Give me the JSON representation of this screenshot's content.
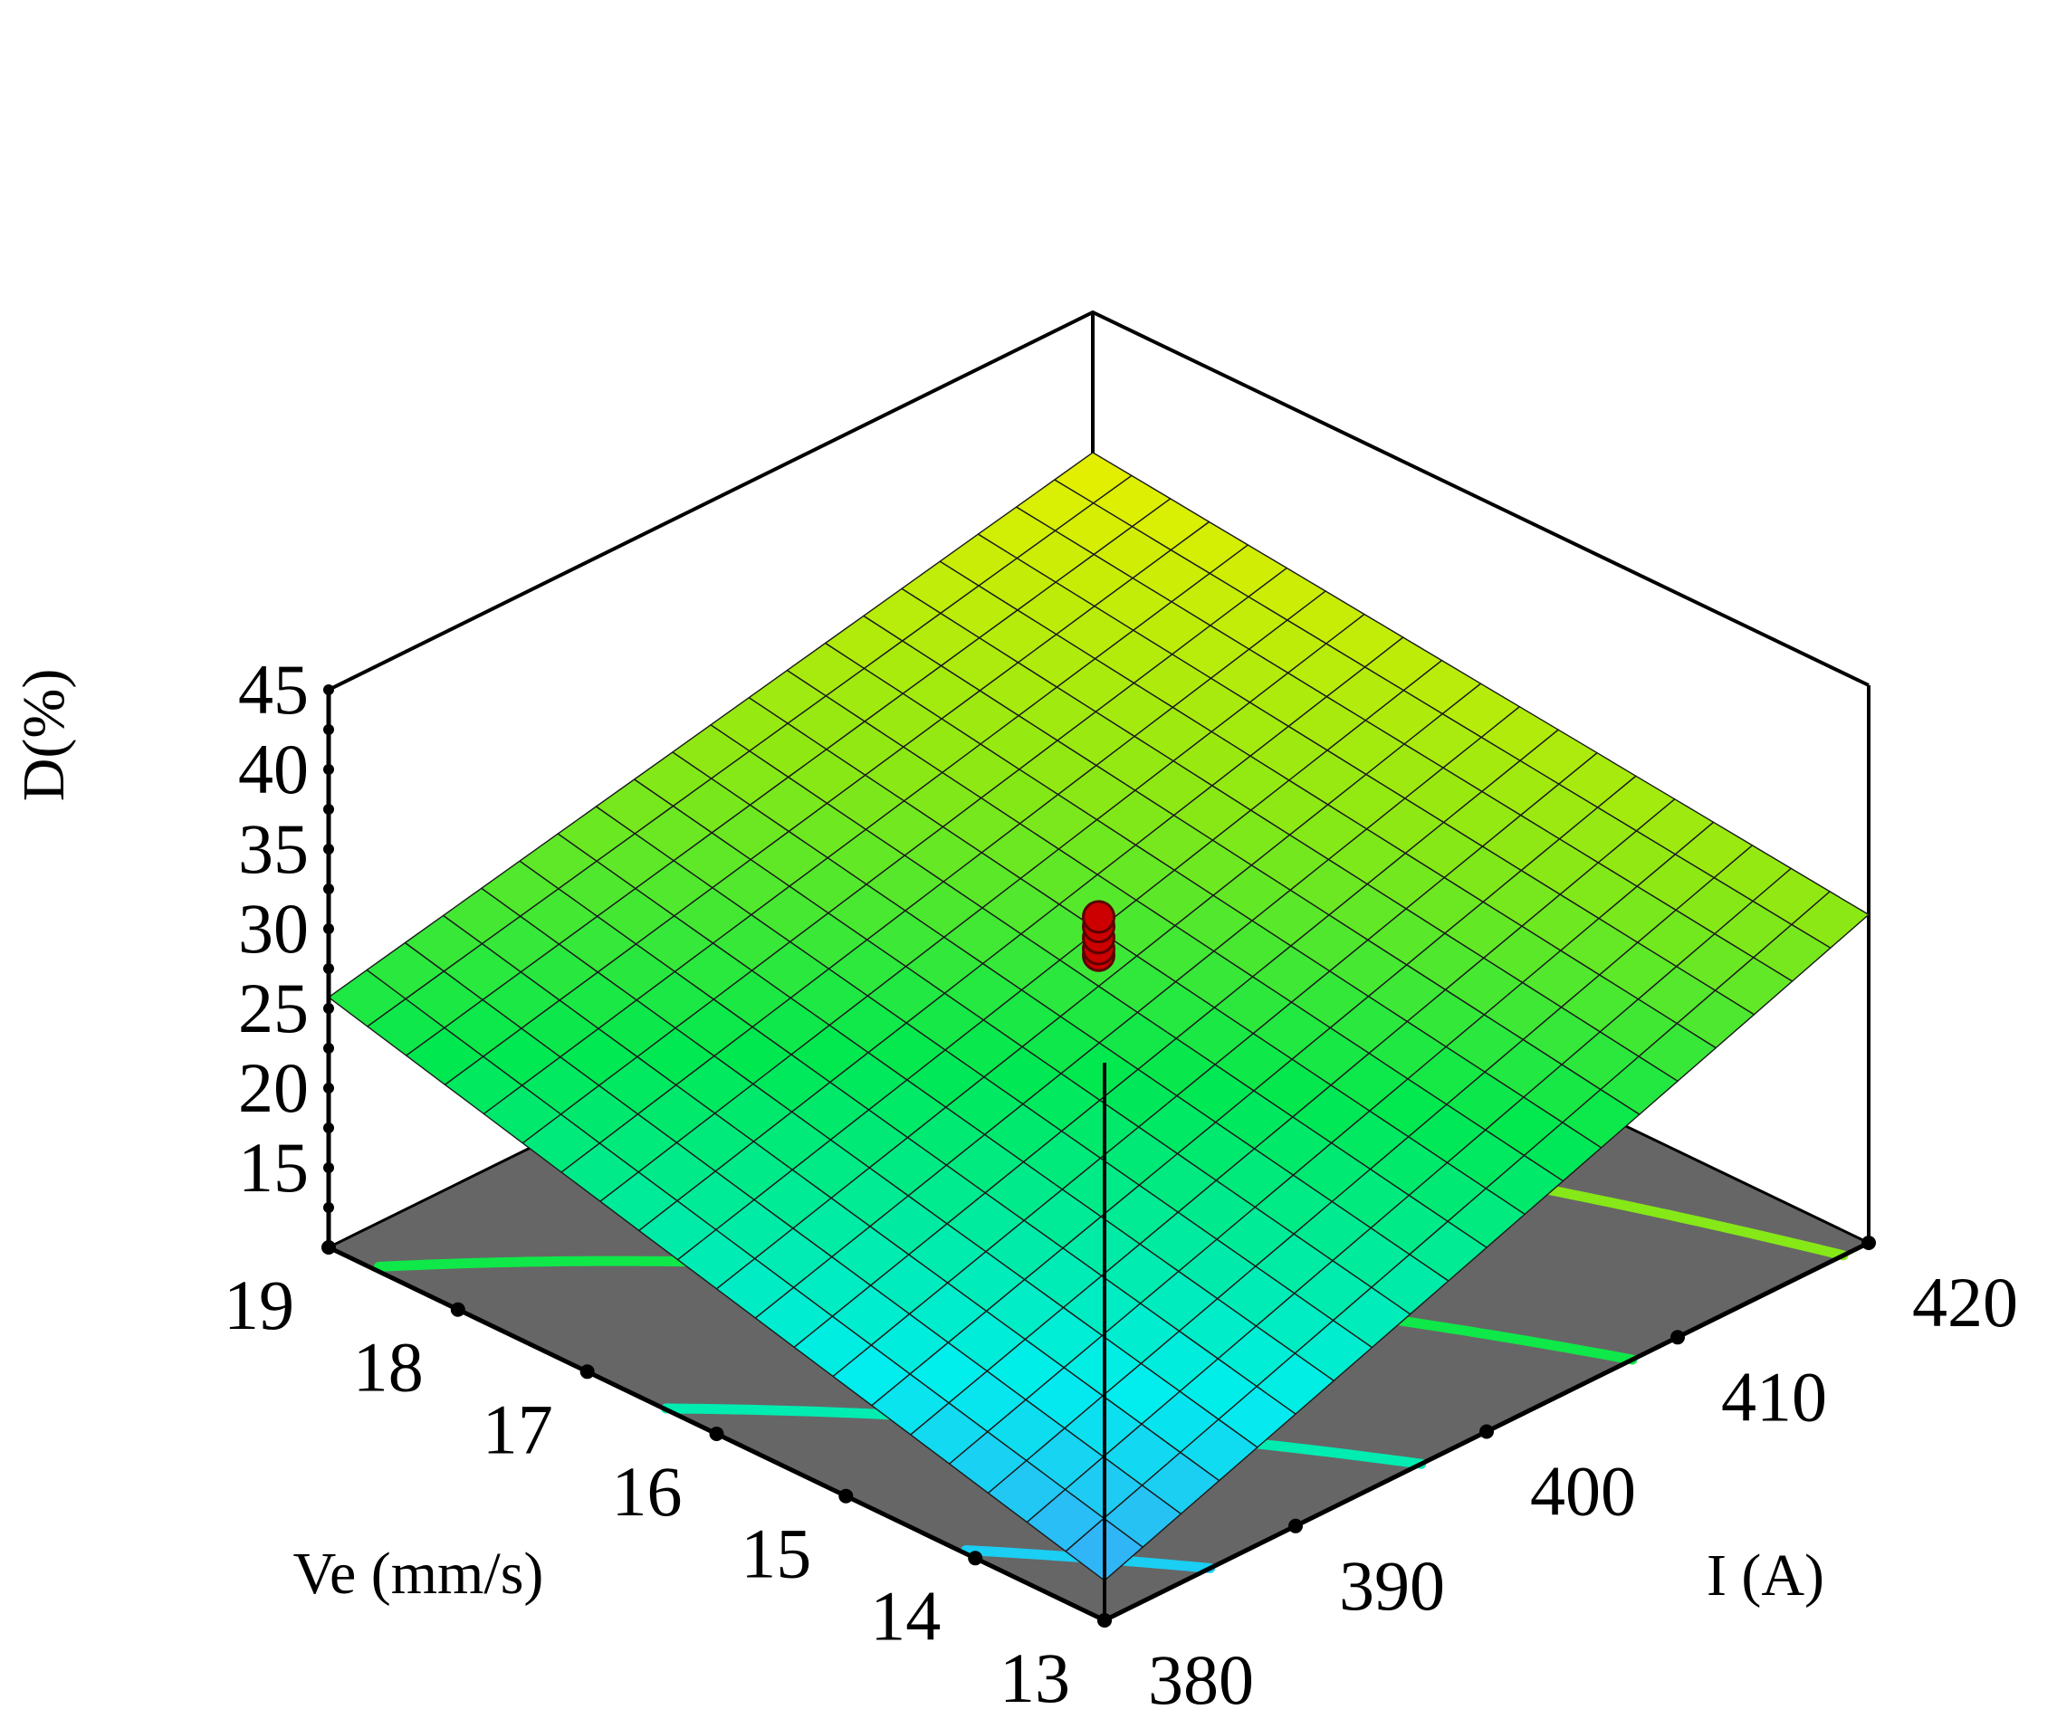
{
  "chart_data": {
    "type": "surface",
    "title": "",
    "xlabel": "Ve (mm/s)",
    "ylabel": "I (A)",
    "zlabel": "D(%)",
    "x_ticks": [
      "13",
      "14",
      "15",
      "16",
      "17",
      "18",
      "19"
    ],
    "y_ticks": [
      "380",
      "390",
      "400",
      "410",
      "420"
    ],
    "z_ticks": [
      "15",
      "20",
      "25",
      "30",
      "35",
      "40",
      "45"
    ],
    "xlim": [
      13,
      19
    ],
    "ylim": [
      380,
      420
    ],
    "zlim": [
      10,
      45
    ],
    "surface_corners": {
      "ve13_i380": 12.5,
      "ve19_i380": 25.7,
      "ve13_i420": 30.6,
      "ve19_i420": 36.2
    },
    "grid_divisions": 20,
    "contour_levels": [
      15,
      20,
      25,
      30,
      35
    ],
    "design_points": [
      {
        "ve": 16,
        "i": 400,
        "d": 28.2
      },
      {
        "ve": 16,
        "i": 400,
        "d": 28.6
      },
      {
        "ve": 16,
        "i": 400,
        "d": 29.3
      },
      {
        "ve": 16,
        "i": 400,
        "d": 30.0
      },
      {
        "ve": 16,
        "i": 400,
        "d": 30.6
      }
    ],
    "colors": {
      "floor": "#666666",
      "design_point": "#cc0000",
      "low": "#3aaaf8",
      "mid": "#00ee44",
      "high": "#e8f000"
    }
  }
}
